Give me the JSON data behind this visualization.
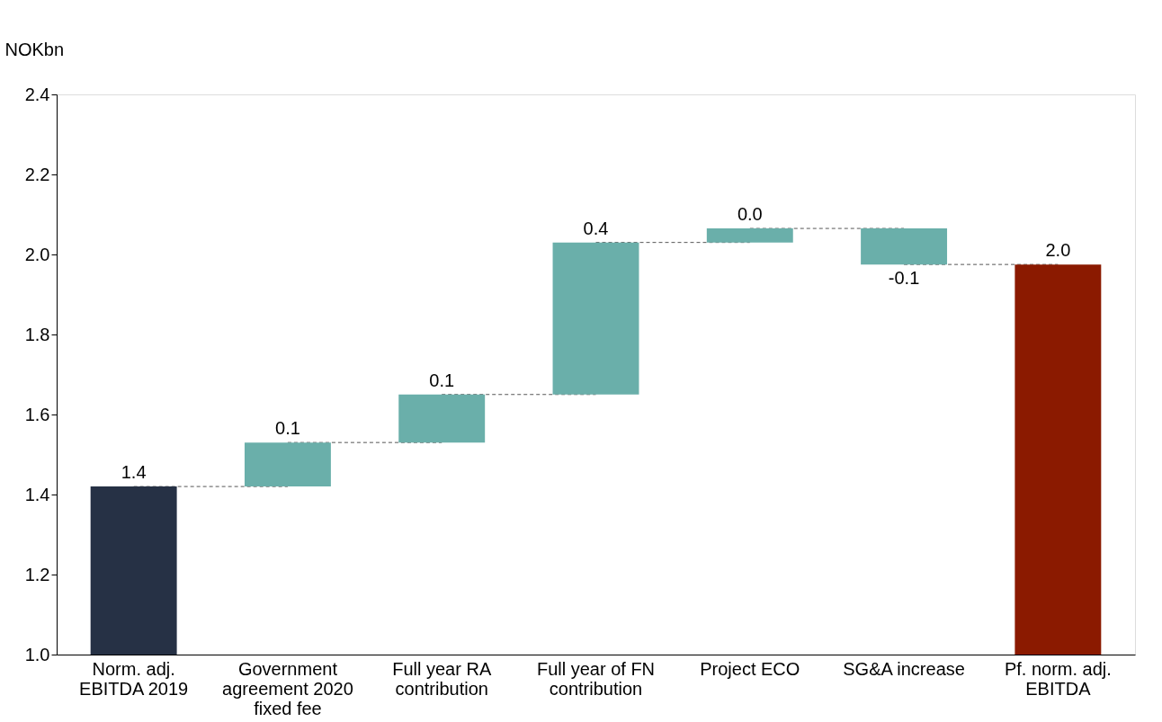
{
  "chart_data": {
    "type": "bar",
    "ylabel": "NOKbn",
    "categories": [
      "Norm. adj. EBITDA 2019",
      "Government agreement 2020 fixed fee",
      "Full year RA contribution",
      "Full year of FN contribution",
      "Project ECO",
      "SG&A increase",
      "Pf. norm. adj. EBITDA"
    ],
    "base": [
      1.0,
      1.42,
      1.53,
      1.65,
      2.03,
      2.065,
      1.0
    ],
    "values": [
      0.42,
      0.11,
      0.12,
      0.38,
      0.035,
      -0.09,
      0.975
    ],
    "colors": [
      "#263145",
      "#6aafaa",
      "#6aafaa",
      "#6aafaa",
      "#6aafaa",
      "#6aafaa",
      "#8b1a00"
    ],
    "value_labels": [
      "1.4",
      "0.1",
      "0.1",
      "0.4",
      "0.0",
      "-0.1",
      "2.0"
    ],
    "ylim": [
      1.0,
      2.4
    ],
    "yticks": [
      {
        "value": 1.0,
        "label": "1.0"
      },
      1.2,
      1.4,
      1.6,
      1.8,
      {
        "value": 2.0,
        "label": "2.0"
      },
      2.2,
      2.4
    ],
    "grid": false
  }
}
